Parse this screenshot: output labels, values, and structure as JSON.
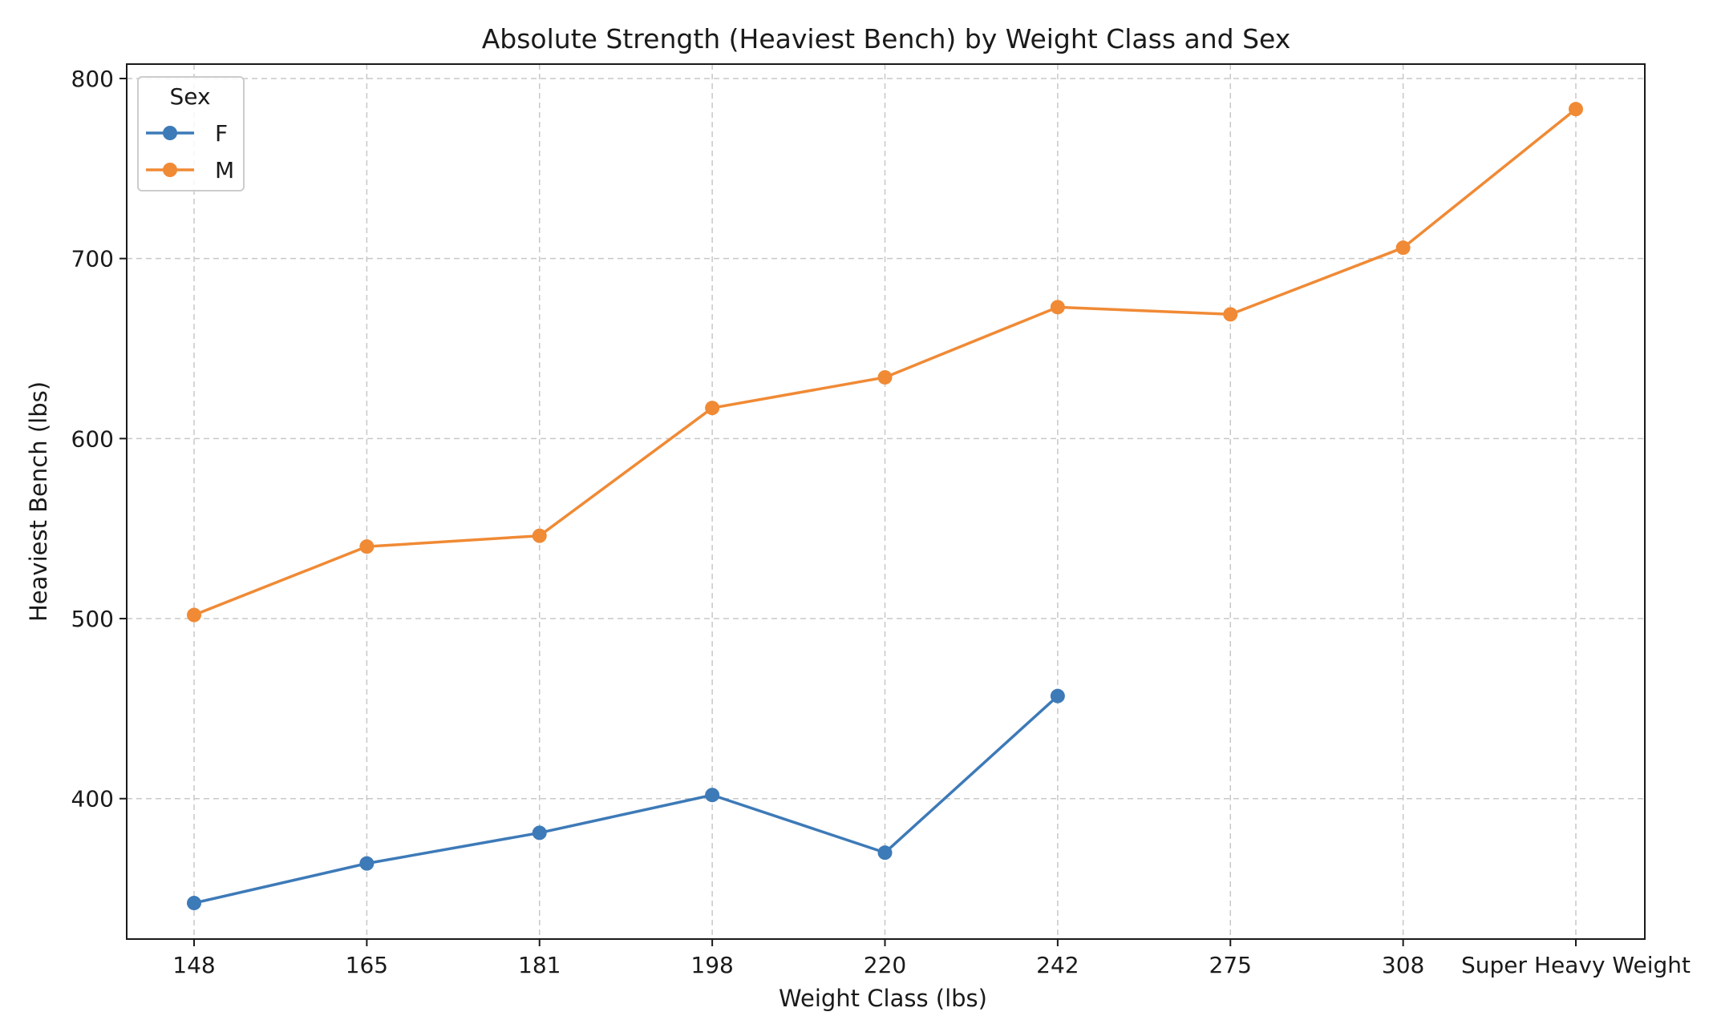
{
  "chart_data": {
    "type": "line",
    "title": "Absolute Strength (Heaviest Bench) by Weight Class and Sex",
    "xlabel": "Weight Class (lbs)",
    "ylabel": "Heaviest Bench (lbs)",
    "categories": [
      "148",
      "165",
      "181",
      "198",
      "220",
      "242",
      "275",
      "308",
      "Super Heavy Weight"
    ],
    "yticks": [
      400,
      500,
      600,
      700,
      800
    ],
    "ylim": [
      322,
      808
    ],
    "grid": true,
    "legend": {
      "title": "Sex",
      "placement": "top-left"
    },
    "series": [
      {
        "name": "F",
        "color": "#3d7ab8",
        "values": [
          342,
          364,
          381,
          402,
          370,
          457,
          null,
          null,
          null
        ]
      },
      {
        "name": "M",
        "color": "#f08a35",
        "values": [
          502,
          540,
          546,
          617,
          634,
          673,
          669,
          706,
          783
        ]
      }
    ]
  }
}
